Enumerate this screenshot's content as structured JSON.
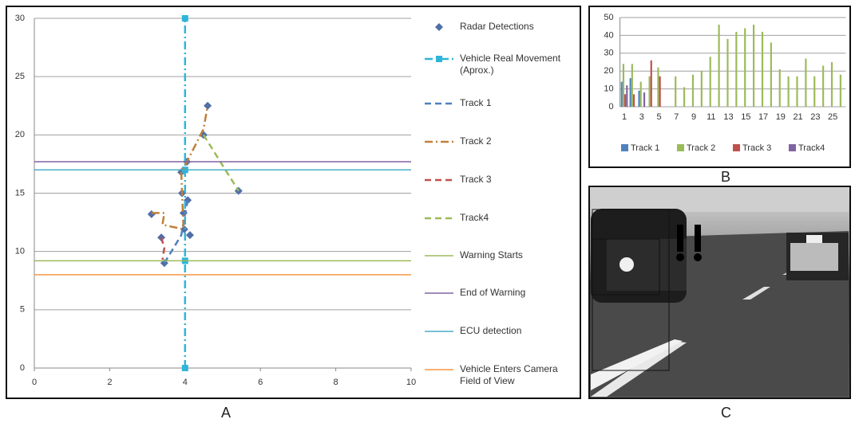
{
  "panels": [
    "A",
    "B",
    "C"
  ],
  "chart_data": [
    {
      "type": "line",
      "xlim": [
        0,
        10
      ],
      "ylim": [
        0,
        30
      ],
      "xticks": [
        0,
        2,
        4,
        6,
        8,
        10
      ],
      "yticks": [
        0,
        5,
        10,
        15,
        20,
        25,
        30
      ],
      "grid": "y",
      "legend": "right",
      "series": [
        {
          "name": "Radar Detections",
          "color": "#4f6fa8",
          "dash": "none",
          "marker": "diamond",
          "x": [
            4.6,
            4.49,
            4.05,
            5.42,
            3.9,
            3.92,
            4.07,
            3.96,
            3.11,
            3.98,
            4.13,
            3.37,
            3.45
          ],
          "values": [
            22.5,
            20.0,
            17.7,
            15.2,
            16.8,
            15.0,
            14.4,
            13.3,
            13.2,
            11.9,
            11.4,
            11.2,
            9.0
          ]
        },
        {
          "name": "Vehicle Real Movement (Aprox.)",
          "color": "#2fb5d8",
          "dash": "dashdot",
          "marker": "square",
          "x": [
            4,
            4,
            4,
            4
          ],
          "values": [
            0,
            9.2,
            17,
            30
          ]
        },
        {
          "name": "Track 1",
          "color": "#4f81bd",
          "dash": "dash",
          "marker": "none",
          "x": [
            3.45,
            3.9,
            4.07
          ],
          "values": [
            9.0,
            11.4,
            14.4
          ]
        },
        {
          "name": "Track 2",
          "color": "#c0803a",
          "dash": "dashdot",
          "marker": "none",
          "x": [
            3.11,
            3.45,
            3.4,
            3.96,
            3.92,
            3.9,
            4.05,
            4.49,
            4.6
          ],
          "values": [
            13.3,
            13.3,
            12.3,
            11.9,
            15.0,
            16.8,
            17.7,
            20.5,
            22.5
          ]
        },
        {
          "name": "Track 3",
          "color": "#c0504d",
          "dash": "dash",
          "marker": "none",
          "x": [
            3.37,
            3.45,
            3.4
          ],
          "values": [
            11.2,
            10.3,
            9.3
          ]
        },
        {
          "name": "Track4",
          "color": "#9bbb59",
          "dash": "dash",
          "marker": "none",
          "x": [
            4.49,
            5.42
          ],
          "values": [
            20.0,
            15.2
          ]
        },
        {
          "name": "Warning Starts",
          "color": "#9bbb59",
          "dash": "solid",
          "marker": "none",
          "x": [
            0,
            10
          ],
          "values": [
            9.2,
            9.2
          ]
        },
        {
          "name": "End of Warning",
          "color": "#8064a2",
          "dash": "solid",
          "marker": "none",
          "x": [
            0,
            10
          ],
          "values": [
            17.7,
            17.7
          ]
        },
        {
          "name": "ECU detection",
          "color": "#4bacc6",
          "dash": "solid",
          "marker": "none",
          "x": [
            0,
            10
          ],
          "values": [
            17.0,
            17.0
          ]
        },
        {
          "name": "Vehicle Enters Camera Field of View",
          "color": "#f79646",
          "dash": "solid",
          "marker": "none",
          "x": [
            0,
            10
          ],
          "values": [
            8.0,
            8.0
          ]
        }
      ]
    },
    {
      "type": "bar",
      "x": [
        1,
        2,
        3,
        4,
        5,
        6,
        7,
        8,
        9,
        10,
        11,
        12,
        13,
        14,
        15,
        16,
        17,
        18,
        19,
        20,
        21,
        22,
        23,
        24,
        25,
        26
      ],
      "xlim": [
        0.5,
        26.5
      ],
      "ylim": [
        0,
        50
      ],
      "xticks": [
        1,
        3,
        5,
        7,
        9,
        11,
        13,
        15,
        17,
        19,
        21,
        23,
        25
      ],
      "yticks": [
        0,
        10,
        20,
        30,
        40,
        50
      ],
      "grid": "y",
      "legend": "bottom",
      "series": [
        {
          "name": "Track 1",
          "color": "#4f81bd",
          "values": [
            14,
            16,
            9,
            null,
            null,
            null,
            null,
            null,
            null,
            null,
            null,
            null,
            null,
            null,
            null,
            null,
            null,
            null,
            null,
            null,
            null,
            null,
            null,
            null,
            null,
            null
          ]
        },
        {
          "name": "Track 2",
          "color": "#9bbb59",
          "values": [
            24,
            24,
            14,
            17,
            22,
            null,
            17,
            11,
            18,
            20,
            28,
            46,
            38,
            42,
            44,
            46,
            42,
            36,
            21,
            17,
            17,
            27,
            17,
            23,
            25,
            18
          ]
        },
        {
          "name": "Track 3",
          "color": "#c0504d",
          "values": [
            7,
            7,
            null,
            26,
            17,
            null,
            null,
            null,
            null,
            null,
            null,
            null,
            null,
            null,
            null,
            null,
            null,
            null,
            null,
            null,
            null,
            null,
            null,
            null,
            null,
            null
          ]
        },
        {
          "name": "Track4",
          "color": "#8064a2",
          "values": [
            12,
            null,
            8,
            null,
            null,
            null,
            null,
            null,
            null,
            null,
            null,
            null,
            null,
            null,
            null,
            null,
            null,
            null,
            null,
            null,
            null,
            null,
            null,
            null,
            null,
            null
          ]
        }
      ]
    }
  ]
}
